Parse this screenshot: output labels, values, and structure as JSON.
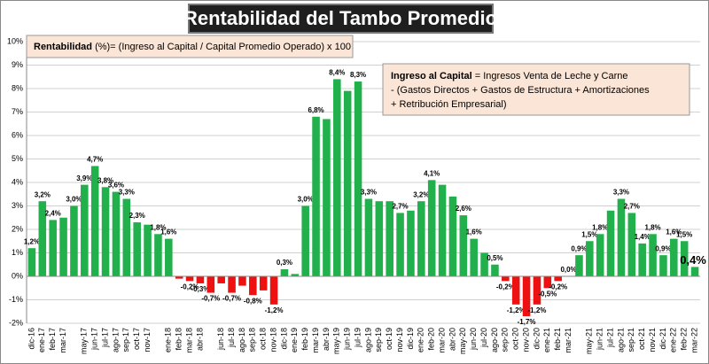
{
  "chart_data": {
    "type": "bar",
    "title": "Rentabilidad del Tambo Promedio",
    "formula": {
      "term": "Rentabilidad",
      "text": " (%)= (Ingreso al Capital / Capital Promedio Operado) x 100"
    },
    "definition": {
      "term": "Ingreso al Capital",
      "lines": [
        " = Ingresos Venta de Leche y Carne",
        "-  (Gastos Directos + Gastos de Estructura  + Amortizaciones",
        "+  Retribución Empresarial)"
      ]
    },
    "categories": [
      "dic-16",
      "ene-17",
      "feb-17",
      "mar-17",
      null,
      "may-17",
      "jun-17",
      "jul-17",
      "ago-17",
      "sep-17",
      "oct-17",
      "nov-17",
      null,
      "ene-18",
      "feb-18",
      "mar-18",
      "abr-18",
      null,
      "jun-18",
      "jul-18",
      "ago-18",
      "sep-18",
      "oct-18",
      "nov-18",
      "dic-18",
      "ene-19",
      "feb-19",
      "mar-19",
      "abr-19",
      "may-19",
      "jun-19",
      "jul-19",
      "ago-19",
      "sep-19",
      "oct-19",
      "nov-19",
      "dic-19",
      "ene-20",
      "feb-20",
      "mar-20",
      "abr-20",
      "may-20",
      "jun-20",
      "jul-20",
      "ago-20",
      "sep-20",
      "oct-20",
      "nov-20",
      "dic-20",
      "ene-21",
      "feb-21",
      "mar-21",
      null,
      "may-21",
      "jun-21",
      "jul-21",
      "ago-21",
      "sep-21",
      "oct-21",
      "nov-21",
      "dic-21",
      "ene-22",
      "feb-22",
      "mar-22"
    ],
    "values": [
      1.2,
      3.2,
      2.4,
      2.5,
      3.0,
      3.9,
      4.7,
      3.8,
      3.6,
      3.3,
      2.3,
      2.2,
      1.8,
      1.6,
      -0.1,
      -0.2,
      -0.3,
      -0.7,
      -0.3,
      -0.7,
      -0.4,
      -0.8,
      -0.6,
      -1.2,
      0.3,
      0.1,
      3.0,
      6.8,
      6.7,
      8.4,
      7.9,
      8.3,
      3.3,
      3.2,
      3.2,
      2.7,
      2.8,
      3.2,
      4.1,
      3.9,
      3.4,
      2.6,
      1.6,
      1.0,
      0.5,
      -0.2,
      -1.2,
      -1.7,
      -1.2,
      -0.5,
      -0.2,
      0.0,
      0.9,
      1.5,
      1.8,
      2.8,
      3.3,
      2.7,
      1.4,
      1.8,
      0.9,
      1.6,
      1.5,
      0.4
    ],
    "value_labels": [
      "1,2%",
      "3,2%",
      "2,4%",
      null,
      "3,0%",
      "3,9%",
      "4,7%",
      "3,8%",
      "3,6%",
      "3,3%",
      "2,3%",
      null,
      "1,8%",
      "1,6%",
      null,
      "-0,2%",
      "-0,3%",
      "-0,7%",
      null,
      "-0,7%",
      null,
      "-0,8%",
      null,
      "-1,2%",
      "0,3%",
      null,
      "3,0%",
      "6,8%",
      null,
      "8,4%",
      null,
      "8,3%",
      "3,3%",
      null,
      null,
      "2,7%",
      null,
      "3,2%",
      "4,1%",
      null,
      null,
      "2,6%",
      "1,6%",
      null,
      "0,5%",
      "-0,2%",
      "-1,2%",
      "-1,7%",
      "-1,2%",
      "-0,5%",
      "-0,2%",
      "0,0%",
      "0,9%",
      "1,5%",
      "1,8%",
      null,
      "3,3%",
      "2,7%",
      "1,4%",
      "1,8%",
      "0,9%",
      "1,6%",
      "1,5%",
      "0,4%"
    ],
    "color": "#21b04b",
    "negative_color": "#ee1111",
    "ylim": [
      -2,
      10
    ],
    "yticks": [
      {
        "value": -2,
        "label": "-2%"
      },
      {
        "value": -1,
        "label": "-1%"
      },
      {
        "value": 0,
        "label": "0%"
      },
      {
        "value": 1,
        "label": "1%"
      },
      {
        "value": 2,
        "label": "2%"
      },
      {
        "value": 3,
        "label": "3%"
      },
      {
        "value": 4,
        "label": "4%"
      },
      {
        "value": 5,
        "label": "5%"
      },
      {
        "value": 6,
        "label": "6%"
      },
      {
        "value": 7,
        "label": "7%"
      },
      {
        "value": 8,
        "label": "8%"
      },
      {
        "value": 9,
        "label": "9%"
      },
      {
        "value": 10,
        "label": "10%"
      }
    ],
    "grid": true
  }
}
